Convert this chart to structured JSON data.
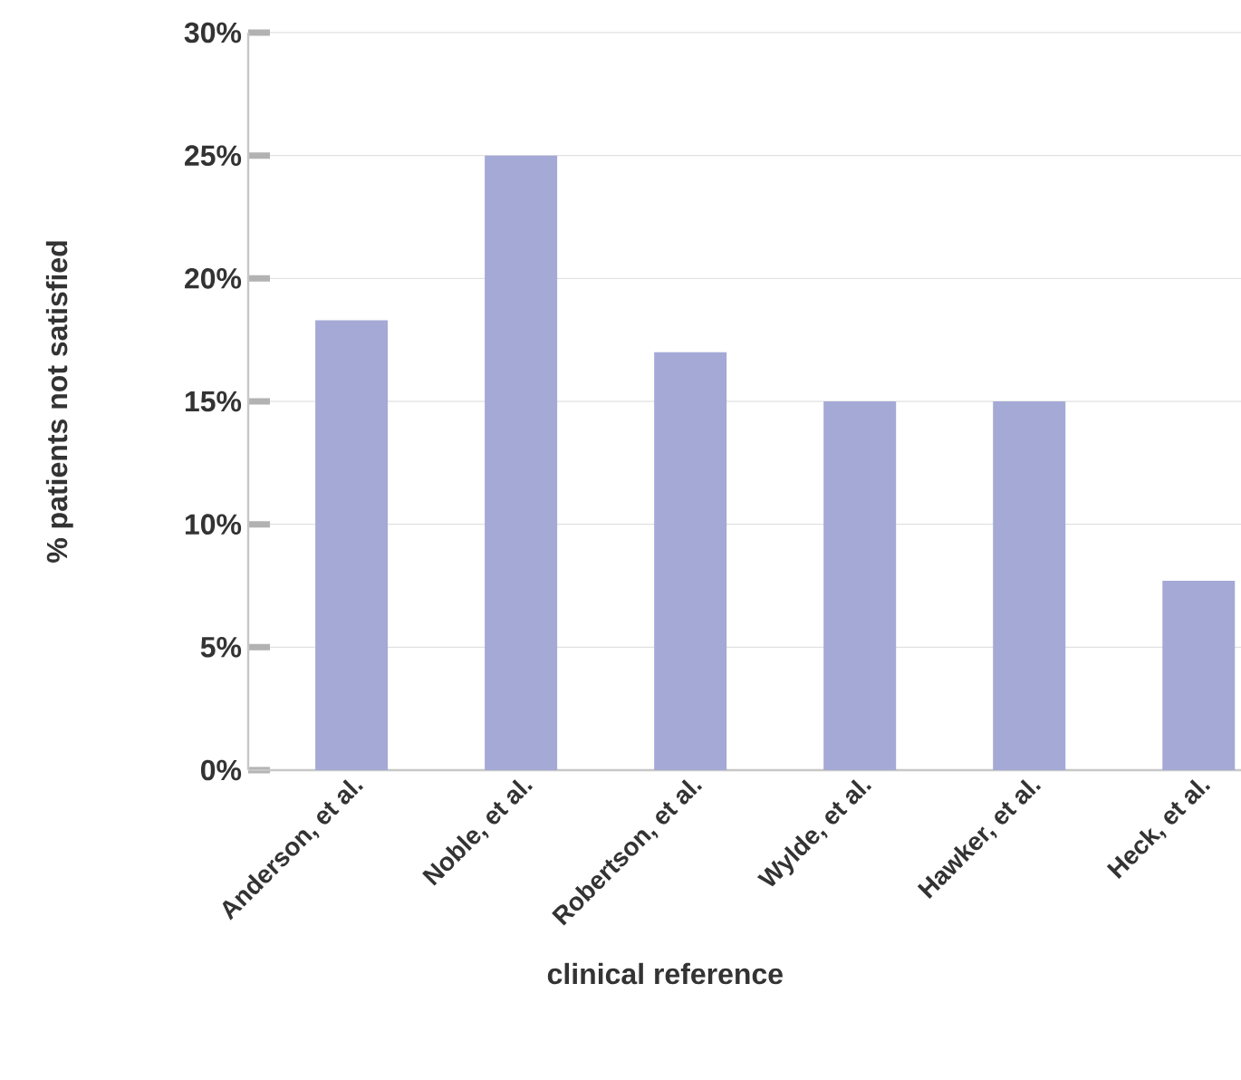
{
  "chart_data": {
    "type": "bar",
    "xlabel": "clinical reference",
    "ylabel": "% patients not satisfied",
    "categories": [
      "Anderson, et al.",
      "Noble, et al.",
      "Robertson, et al.",
      "Wylde, et al.",
      "Hawker, et al.",
      "Heck, et al."
    ],
    "values": [
      18.3,
      25,
      17,
      15,
      15,
      7.7
    ],
    "color": "#a5a9d6",
    "ylim": [
      0,
      30
    ],
    "yticks": [
      {
        "value": 0,
        "label": "0%"
      },
      {
        "value": 5,
        "label": "5%"
      },
      {
        "value": 10,
        "label": "10%"
      },
      {
        "value": 15,
        "label": "15%"
      },
      {
        "value": 20,
        "label": "20%"
      },
      {
        "value": 25,
        "label": "25%"
      },
      {
        "value": 30,
        "label": "30%"
      }
    ],
    "grid": "y"
  }
}
